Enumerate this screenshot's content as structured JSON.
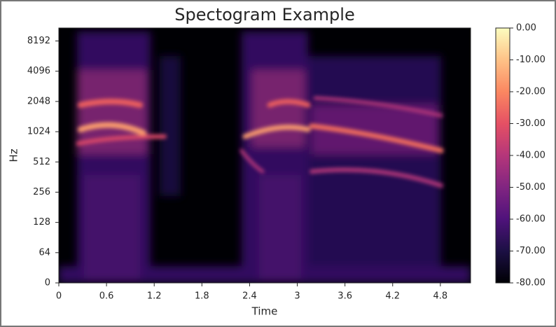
{
  "chart_data": {
    "type": "spectrogram",
    "title": "Spectogram Example",
    "xlabel": "Time",
    "ylabel": "Hz",
    "xlim": [
      0,
      5.18
    ],
    "xticks": [
      0,
      0.6,
      1.2,
      1.8,
      2.4,
      3,
      3.6,
      4.2,
      4.8
    ],
    "ylim": [
      0,
      11025
    ],
    "yscale": "symlog",
    "linthresh": 64,
    "yticks": [
      0,
      64,
      128,
      256,
      512,
      1024,
      2048,
      4096,
      8192
    ],
    "colormap": "magma",
    "colorbar": {
      "lim": [
        -80,
        0
      ],
      "ticks": [
        {
          "value": 0,
          "label": "0.00"
        },
        {
          "value": -10,
          "label": "-10.00"
        },
        {
          "value": -20,
          "label": "-20.00"
        },
        {
          "value": -30,
          "label": "-30.00"
        },
        {
          "value": -40,
          "label": "-40.00"
        },
        {
          "value": -50,
          "label": "-50.00"
        },
        {
          "value": -60,
          "label": "-60.00"
        },
        {
          "value": -70,
          "label": "-70.00"
        },
        {
          "value": -80,
          "label": "-80.00"
        }
      ]
    }
  }
}
